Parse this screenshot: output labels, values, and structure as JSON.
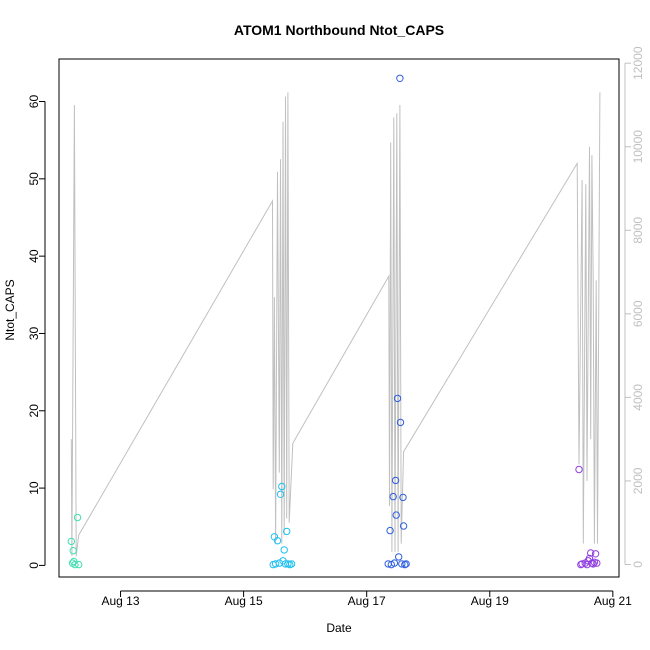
{
  "chart_data": {
    "type": "scatter",
    "title": "ATOM1 Northbound Ntot_CAPS",
    "xlabel": "Date",
    "ylabel": "Ntot_CAPS",
    "x_tick_labels": [
      "Aug 13",
      "Aug 15",
      "Aug 17",
      "Aug 19",
      "Aug 21"
    ],
    "x_tick_values": [
      13,
      15,
      17,
      19,
      21
    ],
    "xlim": [
      12.0,
      21.1
    ],
    "ylim": [
      -1.5,
      65.5
    ],
    "y_ticks": [
      0,
      10,
      20,
      30,
      40,
      50,
      60
    ],
    "y2_ticks": [
      0,
      2000,
      4000,
      6000,
      8000,
      10000,
      12000
    ],
    "y2lim": [
      -300,
      12100
    ],
    "y2_color": "#c0c0c0",
    "grid": false,
    "series": [
      {
        "color": "#40e0b0",
        "points": [
          [
            12.2,
            3.1
          ],
          [
            12.22,
            0.3
          ],
          [
            12.24,
            0.5
          ],
          [
            12.23,
            1.9
          ],
          [
            12.26,
            0.1
          ],
          [
            12.3,
            6.2
          ],
          [
            12.32,
            0.1
          ]
        ]
      },
      {
        "color": "#20c0f0",
        "points": [
          [
            15.48,
            0.1
          ],
          [
            15.5,
            3.7
          ],
          [
            15.52,
            0.2
          ],
          [
            15.55,
            3.2
          ],
          [
            15.58,
            0.3
          ],
          [
            15.6,
            9.2
          ],
          [
            15.62,
            10.2
          ],
          [
            15.64,
            0.6
          ],
          [
            15.66,
            2.0
          ],
          [
            15.68,
            0.2
          ],
          [
            15.7,
            4.4
          ],
          [
            15.72,
            0.2
          ],
          [
            15.75,
            0.1
          ],
          [
            15.78,
            0.2
          ]
        ]
      },
      {
        "color": "#3060e0",
        "points": [
          [
            17.35,
            0.2
          ],
          [
            17.38,
            4.5
          ],
          [
            17.4,
            0.1
          ],
          [
            17.43,
            8.9
          ],
          [
            17.45,
            0.3
          ],
          [
            17.47,
            11.0
          ],
          [
            17.48,
            6.5
          ],
          [
            17.5,
            21.6
          ],
          [
            17.52,
            1.1
          ],
          [
            17.54,
            63.0
          ],
          [
            17.55,
            18.5
          ],
          [
            17.57,
            0.2
          ],
          [
            17.59,
            8.8
          ],
          [
            17.6,
            5.1
          ],
          [
            17.62,
            0.1
          ],
          [
            17.64,
            0.2
          ]
        ]
      },
      {
        "color": "#9040e0",
        "points": [
          [
            20.45,
            12.4
          ],
          [
            20.48,
            0.1
          ],
          [
            20.5,
            0.2
          ],
          [
            20.55,
            0.3
          ],
          [
            20.58,
            0.1
          ],
          [
            20.6,
            0.6
          ],
          [
            20.62,
            0.9
          ],
          [
            20.64,
            1.6
          ],
          [
            20.66,
            0.3
          ],
          [
            20.68,
            0.2
          ],
          [
            20.7,
            0.4
          ],
          [
            20.72,
            1.5
          ],
          [
            20.74,
            0.3
          ]
        ]
      }
    ],
    "secondary_line": {
      "color": "#c0c0c0",
      "points": [
        [
          12.2,
          3000
        ],
        [
          12.21,
          200
        ],
        [
          12.25,
          11000
        ],
        [
          12.28,
          200
        ],
        [
          12.32,
          700
        ],
        [
          15.47,
          8700
        ],
        [
          15.48,
          1800
        ],
        [
          15.5,
          6400
        ],
        [
          15.52,
          500
        ],
        [
          15.55,
          9400
        ],
        [
          15.58,
          2200
        ],
        [
          15.6,
          9700
        ],
        [
          15.62,
          500
        ],
        [
          15.64,
          10600
        ],
        [
          15.66,
          700
        ],
        [
          15.68,
          11200
        ],
        [
          15.7,
          1100
        ],
        [
          15.72,
          11300
        ],
        [
          15.74,
          1000
        ],
        [
          15.8,
          2900
        ],
        [
          17.36,
          6900
        ],
        [
          17.37,
          1400
        ],
        [
          17.39,
          10100
        ],
        [
          17.41,
          300
        ],
        [
          17.44,
          10700
        ],
        [
          17.46,
          300
        ],
        [
          17.49,
          10800
        ],
        [
          17.51,
          300
        ],
        [
          17.54,
          11000
        ],
        [
          17.56,
          500
        ],
        [
          17.6,
          2700
        ],
        [
          20.42,
          9600
        ],
        [
          20.45,
          2400
        ],
        [
          20.5,
          9200
        ],
        [
          20.52,
          500
        ],
        [
          20.56,
          9100
        ],
        [
          20.58,
          2000
        ],
        [
          20.62,
          10000
        ],
        [
          20.64,
          3000
        ],
        [
          20.66,
          9800
        ],
        [
          20.68,
          6800
        ],
        [
          20.7,
          500
        ],
        [
          20.73,
          6800
        ],
        [
          20.75,
          500
        ],
        [
          20.79,
          11300
        ]
      ]
    }
  }
}
